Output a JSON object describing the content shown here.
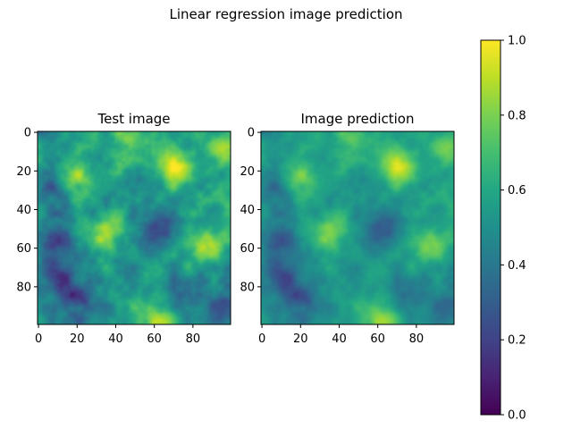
{
  "figure": {
    "title": "Linear regression image prediction"
  },
  "chart_data": [
    {
      "type": "heatmap",
      "title": "Test image",
      "xlabel": "",
      "ylabel": "",
      "xlim": [
        0,
        100
      ],
      "ylim": [
        100,
        0
      ],
      "xticks": [
        0,
        20,
        40,
        60,
        80
      ],
      "yticks": [
        0,
        20,
        40,
        60,
        80
      ],
      "colormap": "viridis",
      "vlim": [
        0,
        1
      ],
      "grid_size": [
        100,
        100
      ],
      "bright_regions": [
        {
          "x": 70,
          "y": 17,
          "value": 0.95
        },
        {
          "x": 20,
          "y": 25,
          "value": 0.88
        },
        {
          "x": 62,
          "y": 96,
          "value": 0.92
        },
        {
          "x": 35,
          "y": 52,
          "value": 0.85
        },
        {
          "x": 87,
          "y": 58,
          "value": 0.85
        },
        {
          "x": 45,
          "y": 3,
          "value": 0.8
        },
        {
          "x": 96,
          "y": 8,
          "value": 0.8
        }
      ],
      "dark_regions": [
        {
          "x": 63,
          "y": 50,
          "value": 0.25
        },
        {
          "x": 10,
          "y": 75,
          "value": 0.2
        },
        {
          "x": 10,
          "y": 55,
          "value": 0.28
        },
        {
          "x": 8,
          "y": 30,
          "value": 0.3
        },
        {
          "x": 20,
          "y": 88,
          "value": 0.25
        },
        {
          "x": 75,
          "y": 85,
          "value": 0.3
        },
        {
          "x": 95,
          "y": 90,
          "value": 0.35
        }
      ]
    },
    {
      "type": "heatmap",
      "title": "Image prediction",
      "xlabel": "",
      "ylabel": "",
      "xlim": [
        0,
        100
      ],
      "ylim": [
        100,
        0
      ],
      "xticks": [
        0,
        20,
        40,
        60,
        80
      ],
      "yticks": [
        0,
        20,
        40,
        60,
        80
      ],
      "colormap": "viridis",
      "vlim": [
        0,
        1
      ],
      "grid_size": [
        100,
        100
      ],
      "bright_regions": [
        {
          "x": 70,
          "y": 17,
          "value": 0.92
        },
        {
          "x": 20,
          "y": 25,
          "value": 0.82
        },
        {
          "x": 62,
          "y": 96,
          "value": 0.88
        },
        {
          "x": 35,
          "y": 52,
          "value": 0.8
        },
        {
          "x": 87,
          "y": 58,
          "value": 0.78
        },
        {
          "x": 45,
          "y": 3,
          "value": 0.75
        },
        {
          "x": 96,
          "y": 8,
          "value": 0.75
        }
      ],
      "dark_regions": [
        {
          "x": 63,
          "y": 50,
          "value": 0.3
        },
        {
          "x": 10,
          "y": 75,
          "value": 0.25
        },
        {
          "x": 10,
          "y": 55,
          "value": 0.32
        },
        {
          "x": 8,
          "y": 30,
          "value": 0.35
        },
        {
          "x": 20,
          "y": 88,
          "value": 0.3
        },
        {
          "x": 75,
          "y": 85,
          "value": 0.35
        },
        {
          "x": 95,
          "y": 90,
          "value": 0.4
        }
      ]
    }
  ],
  "colorbar": {
    "range": [
      0,
      1
    ],
    "ticks": [
      "0.0",
      "0.2",
      "0.4",
      "0.6",
      "0.8",
      "1.0"
    ],
    "colormap": "viridis"
  }
}
